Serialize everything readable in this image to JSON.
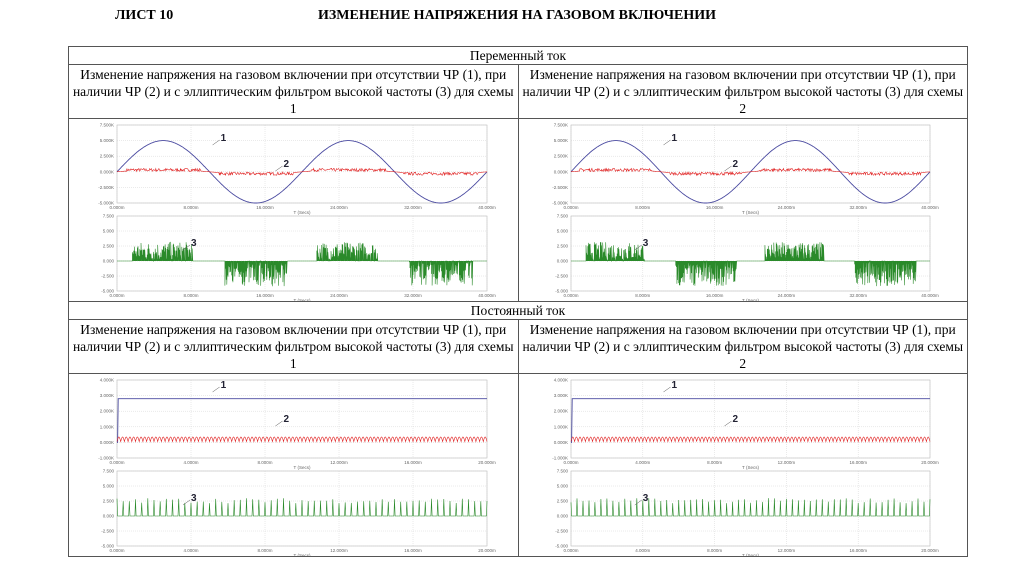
{
  "header": {
    "sheet": "ЛИСТ 10",
    "title": "ИЗМЕНЕНИЕ НАПРЯЖЕНИЯ НА ГАЗОВОМ ВКЛЮЧЕНИИ"
  },
  "sections": [
    {
      "title": "Переменный ток",
      "captions": [
        "Изменение напряжения на газовом включении при отсутствии ЧР (1), при наличии ЧР (2) и с эллиптическим фильтром высокой частоты (3) для схемы 1",
        "Изменение напряжения на газовом включении при отсутствии ЧР (1), при наличии ЧР (2) и с эллиптическим фильтром высокой частоты (3) для схемы 2"
      ]
    },
    {
      "title": "Постоянный ток",
      "captions": [
        "Изменение напряжения на газовом включении при отсутствии ЧР (1), при наличии ЧР (2) и с эллиптическим фильтром высокой частоты (3) для схемы 1",
        "Изменение напряжения на газовом включении при отсутствии ЧР (1), при наличии ЧР (2) и с эллиптическим фильтром высокой частоты (3) для схемы 2"
      ]
    }
  ],
  "chart_data": [
    {
      "type": "line",
      "mode": "ac",
      "xlabel": "T (Secs)",
      "top": {
        "ylim": [
          -5,
          7.5
        ],
        "yticks": [
          "7.500K",
          "5.000K",
          "2.500K",
          "0.000K",
          "-2.500K",
          "-5.000K"
        ],
        "series": [
          {
            "name": "1",
            "kind": "sine",
            "amplitude": 5,
            "period_ms": 20,
            "color": "#4a4aa0"
          },
          {
            "name": "2",
            "kind": "pd",
            "color": "#e02020"
          }
        ]
      },
      "bottom": {
        "ylim": [
          -5,
          7.5
        ],
        "yticks": [
          "7.500",
          "5.000",
          "2.500",
          "0.000",
          "-2.500",
          "-5.000"
        ],
        "series": [
          {
            "name": "3",
            "kind": "bursts",
            "color": "#2a8a2a"
          }
        ]
      },
      "xlim": [
        0,
        40
      ],
      "xticks": [
        "0.000m",
        "8.000m",
        "16.000m",
        "24.000m",
        "32.000m",
        "40.000m"
      ]
    },
    {
      "type": "line",
      "mode": "dc",
      "xlabel": "T (Secs)",
      "top": {
        "ylim": [
          -1,
          4
        ],
        "yticks": [
          "4.000K",
          "3.000K",
          "2.000K",
          "1.000K",
          "0.000K",
          "-1.000K"
        ],
        "series": [
          {
            "name": "1",
            "kind": "dc",
            "level": 2.8,
            "color": "#4a4aa0"
          },
          {
            "name": "2",
            "kind": "ripple",
            "color": "#e02020"
          }
        ]
      },
      "bottom": {
        "ylim": [
          -5,
          7.5
        ],
        "yticks": [
          "7.500",
          "5.000",
          "2.500",
          "0.000",
          "-2.500",
          "-5.000"
        ],
        "series": [
          {
            "name": "3",
            "kind": "pulses",
            "level": 2.5,
            "color": "#2a8a2a"
          }
        ]
      },
      "xlim": [
        0,
        20
      ],
      "xticks": [
        "0.000m",
        "4.000m",
        "8.000m",
        "12.000m",
        "16.000m",
        "20.000m"
      ]
    }
  ]
}
